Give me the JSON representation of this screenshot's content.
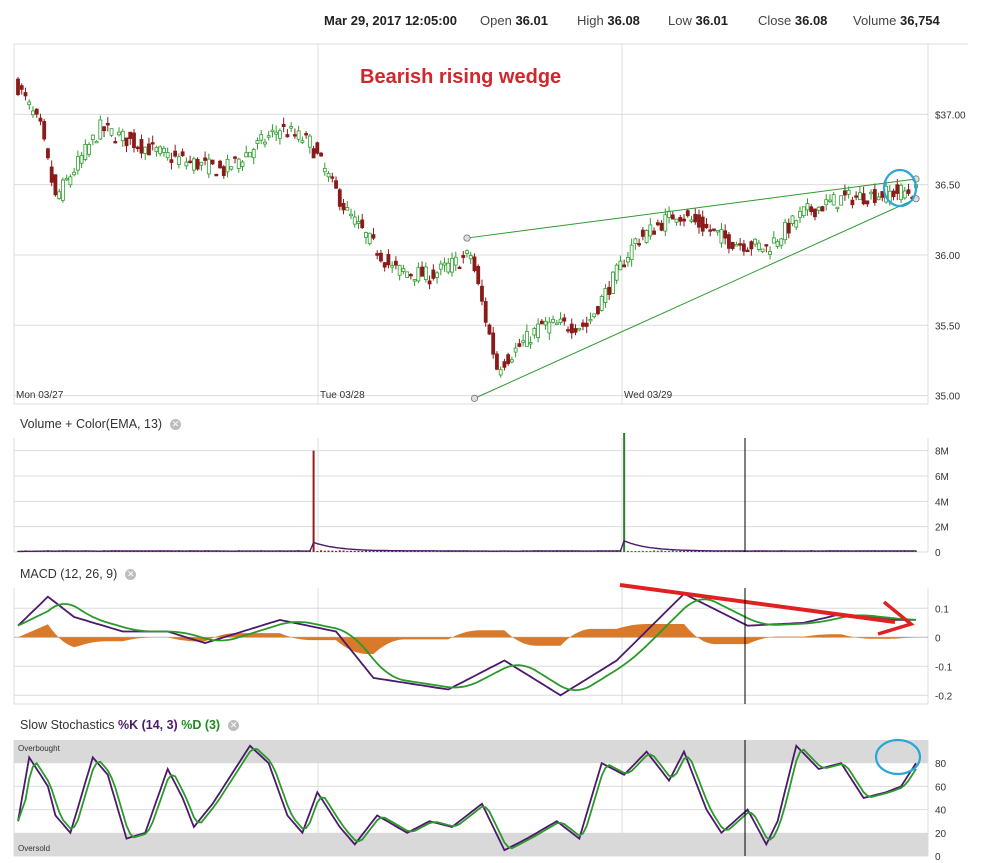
{
  "header": {
    "datetime": "Mar 29, 2017 12:05:00",
    "open_label": "Open",
    "open_value": "36.01",
    "high_label": "High",
    "high_value": "36.08",
    "low_label": "Low",
    "low_value": "36.01",
    "close_label": "Close",
    "close_value": "36.08",
    "volume_label": "Volume",
    "volume_value": "36,754"
  },
  "annotation": "Bearish rising wedge",
  "colors": {
    "up": "#2e9e2e",
    "down": "#8b1a1a",
    "trendline": "#2f9a2f",
    "annotation": "#d0262e",
    "highlight_circle": "#2aa6d8",
    "histogram": "#d9792a",
    "k_line": "#4b1a6b",
    "d_line": "#2b9a2b",
    "grid": "#dcdcdc",
    "band": "#d9d9d9"
  },
  "chart_data": [
    {
      "type": "candlestick",
      "name": "price",
      "x_labels": [
        "Mon 03/27",
        "Tue 03/28",
        "Wed 03/29"
      ],
      "y_ticks": [
        "35.00",
        "35.50",
        "36.00",
        "36.50",
        "$37.00"
      ],
      "ylim": [
        34.94,
        37.5
      ],
      "grid": true,
      "waypoints": [
        {
          "i": 0,
          "v": 37.2
        },
        {
          "i": 6,
          "v": 36.9
        },
        {
          "i": 10,
          "v": 36.4
        },
        {
          "i": 22,
          "v": 36.9
        },
        {
          "i": 40,
          "v": 36.7
        },
        {
          "i": 55,
          "v": 36.6
        },
        {
          "i": 70,
          "v": 36.9
        },
        {
          "i": 78,
          "v": 36.8
        },
        {
          "i": 88,
          "v": 36.3
        },
        {
          "i": 100,
          "v": 35.9
        },
        {
          "i": 110,
          "v": 35.85
        },
        {
          "i": 121,
          "v": 36.0
        },
        {
          "i": 128,
          "v": 35.2
        },
        {
          "i": 140,
          "v": 35.5
        },
        {
          "i": 152,
          "v": 35.5
        },
        {
          "i": 165,
          "v": 36.1
        },
        {
          "i": 176,
          "v": 36.3
        },
        {
          "i": 190,
          "v": 36.1
        },
        {
          "i": 200,
          "v": 36.05
        },
        {
          "i": 210,
          "v": 36.3
        },
        {
          "i": 220,
          "v": 36.4
        },
        {
          "i": 236,
          "v": 36.45
        }
      ],
      "wedge_lines": [
        {
          "name": "upper",
          "from": {
            "i": 120,
            "v": 36.12
          },
          "to": {
            "i": 240,
            "v": 36.54
          }
        },
        {
          "name": "lower",
          "from": {
            "i": 122,
            "v": 34.98
          },
          "to": {
            "i": 240,
            "v": 36.4
          }
        }
      ]
    },
    {
      "type": "bar",
      "name": "Volume + Color(EMA, 13)",
      "title": "Volume + Color(EMA, 13)",
      "y_ticks": [
        "0",
        "2M",
        "4M",
        "6M",
        "8M"
      ],
      "ylim": [
        0,
        9
      ],
      "spikes": [
        {
          "i": 79,
          "v": 8.0
        },
        {
          "i": 162,
          "v": 9.4
        }
      ],
      "baseline_volume": 0.12
    },
    {
      "type": "line",
      "name": "MACD",
      "title_main": "MACD (12, 26, 9)",
      "y_ticks": [
        "0.1",
        "0",
        "-0.1",
        "-0.2"
      ],
      "ylim": [
        -0.23,
        0.17
      ],
      "macd_waypoints": [
        {
          "i": 0,
          "v": 0.04
        },
        {
          "i": 8,
          "v": 0.14
        },
        {
          "i": 15,
          "v": 0.07
        },
        {
          "i": 28,
          "v": 0.02
        },
        {
          "i": 40,
          "v": 0.02
        },
        {
          "i": 50,
          "v": -0.02
        },
        {
          "i": 70,
          "v": 0.06
        },
        {
          "i": 85,
          "v": 0.02
        },
        {
          "i": 95,
          "v": -0.14
        },
        {
          "i": 115,
          "v": -0.18
        },
        {
          "i": 130,
          "v": -0.08
        },
        {
          "i": 145,
          "v": -0.2
        },
        {
          "i": 160,
          "v": -0.08
        },
        {
          "i": 178,
          "v": 0.15
        },
        {
          "i": 195,
          "v": 0.04
        },
        {
          "i": 210,
          "v": 0.05
        },
        {
          "i": 220,
          "v": 0.08
        },
        {
          "i": 234,
          "v": 0.06
        }
      ],
      "signal_lag": 4
    },
    {
      "type": "line",
      "name": "Slow Stochastics",
      "title_main": "Slow Stochastics",
      "title_k": "%K (14, 3)",
      "title_d": "%D (3)",
      "y_ticks": [
        "0",
        "20",
        "40",
        "60",
        "80"
      ],
      "ylim": [
        0,
        100
      ],
      "band_labels": [
        "Overbought",
        "Oversold"
      ],
      "k_waypoints": [
        {
          "i": 0,
          "v": 30
        },
        {
          "i": 3,
          "v": 85
        },
        {
          "i": 8,
          "v": 60
        },
        {
          "i": 10,
          "v": 35
        },
        {
          "i": 14,
          "v": 20
        },
        {
          "i": 20,
          "v": 85
        },
        {
          "i": 24,
          "v": 70
        },
        {
          "i": 29,
          "v": 15
        },
        {
          "i": 34,
          "v": 20
        },
        {
          "i": 40,
          "v": 75
        },
        {
          "i": 44,
          "v": 50
        },
        {
          "i": 47,
          "v": 25
        },
        {
          "i": 52,
          "v": 45
        },
        {
          "i": 58,
          "v": 75
        },
        {
          "i": 62,
          "v": 95
        },
        {
          "i": 67,
          "v": 80
        },
        {
          "i": 72,
          "v": 35
        },
        {
          "i": 76,
          "v": 20
        },
        {
          "i": 80,
          "v": 55
        },
        {
          "i": 86,
          "v": 25
        },
        {
          "i": 90,
          "v": 10
        },
        {
          "i": 96,
          "v": 35
        },
        {
          "i": 104,
          "v": 20
        },
        {
          "i": 110,
          "v": 30
        },
        {
          "i": 116,
          "v": 25
        },
        {
          "i": 124,
          "v": 45
        },
        {
          "i": 130,
          "v": 5
        },
        {
          "i": 136,
          "v": 15
        },
        {
          "i": 144,
          "v": 30
        },
        {
          "i": 150,
          "v": 15
        },
        {
          "i": 156,
          "v": 80
        },
        {
          "i": 162,
          "v": 70
        },
        {
          "i": 168,
          "v": 90
        },
        {
          "i": 174,
          "v": 65
        },
        {
          "i": 178,
          "v": 90
        },
        {
          "i": 184,
          "v": 40
        },
        {
          "i": 188,
          "v": 20
        },
        {
          "i": 195,
          "v": 40
        },
        {
          "i": 200,
          "v": 10
        },
        {
          "i": 203,
          "v": 30
        },
        {
          "i": 208,
          "v": 95
        },
        {
          "i": 214,
          "v": 75
        },
        {
          "i": 220,
          "v": 80
        },
        {
          "i": 226,
          "v": 50
        },
        {
          "i": 232,
          "v": 55
        },
        {
          "i": 236,
          "v": 60
        },
        {
          "i": 240,
          "v": 80
        }
      ],
      "d_lag": 2
    }
  ]
}
